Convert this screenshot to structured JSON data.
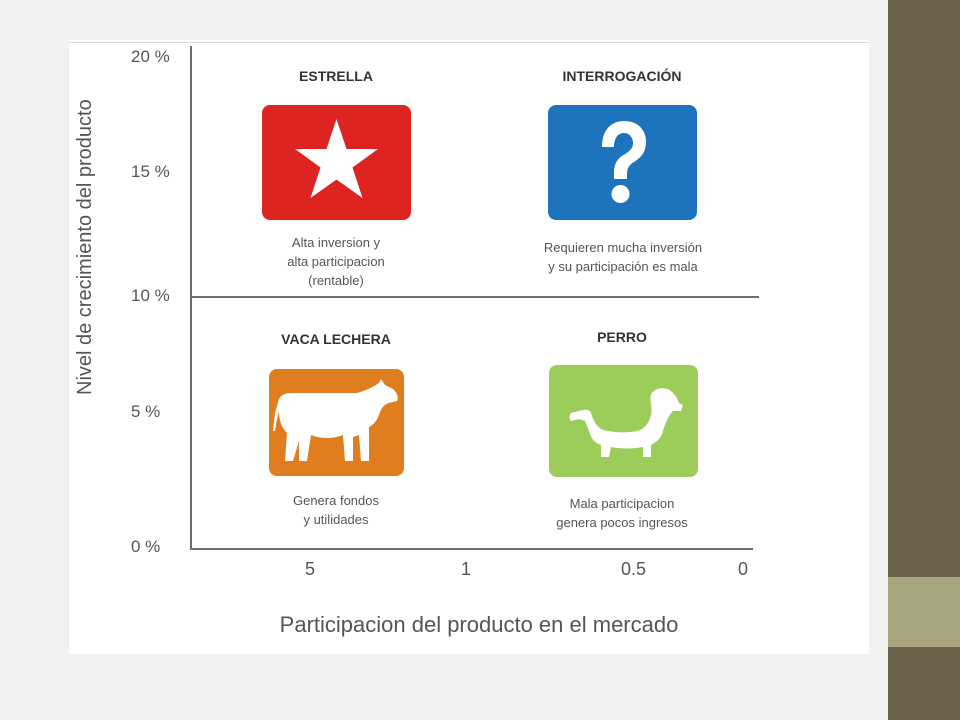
{
  "colors": {
    "estrella": "#dd2421",
    "interrogacion": "#1d74bd",
    "vaca": "#e07d1e",
    "perro": "#9ccd5b",
    "side_dark": "#6b634b",
    "side_light": "#a9a57f"
  },
  "axes": {
    "y_label": "Nivel de crecimiento del producto",
    "x_label": "Participacion del producto en el mercado",
    "y_ticks": [
      "20 %",
      "15 %",
      "10 %",
      "5 %",
      "0 %"
    ],
    "x_ticks": [
      "5",
      "1",
      "0.5",
      "0"
    ]
  },
  "quadrants": {
    "estrella": {
      "title": "ESTRELLA",
      "icon": "star-icon",
      "desc": [
        "Alta inversion y",
        "alta participacion",
        "(rentable)"
      ]
    },
    "interrogacion": {
      "title": "INTERROGACIÓN",
      "icon": "question-mark-icon",
      "desc": [
        "Requieren mucha inversión",
        "y su participación es mala"
      ]
    },
    "vaca": {
      "title": "VACA LECHERA",
      "icon": "cow-icon",
      "desc": [
        "Genera fondos",
        "y utilidades"
      ]
    },
    "perro": {
      "title": "PERRO",
      "icon": "dog-icon",
      "desc": [
        "Mala participacion",
        "genera pocos ingresos"
      ]
    }
  }
}
